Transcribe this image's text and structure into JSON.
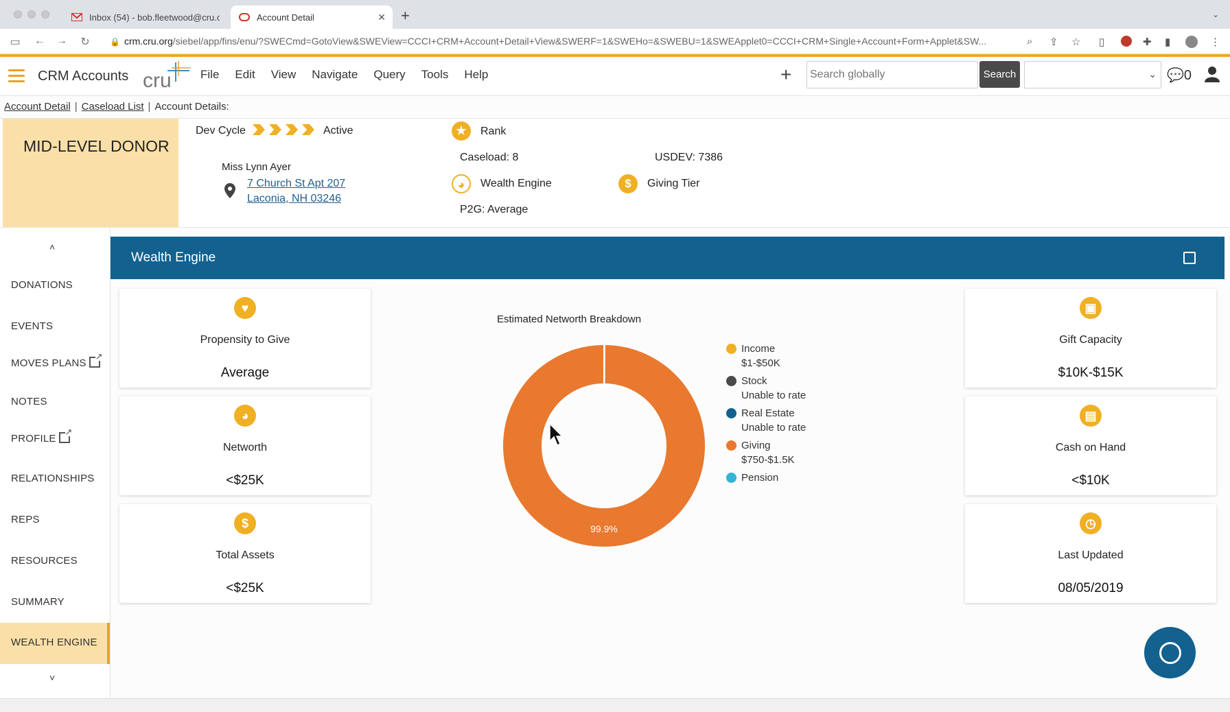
{
  "browser": {
    "tabs": [
      {
        "title": "Inbox (54) - bob.fleetwood@cru.o",
        "active": false
      },
      {
        "title": "Account Detail",
        "active": true
      }
    ],
    "url_host": "crm.cru.org",
    "url_path": "/siebel/app/fins/enu/?SWECmd=GotoView&SWEView=CCCI+CRM+Account+Detail+View&SWERF=1&SWEHo=&SWEBU=1&SWEApplet0=CCCI+CRM+Single+Account+Form+Applet&SW..."
  },
  "header": {
    "app_name": "CRM Accounts",
    "logo_text": "cru",
    "menu": [
      "File",
      "Edit",
      "View",
      "Navigate",
      "Query",
      "Tools",
      "Help"
    ],
    "search_placeholder": "Search globally",
    "search_button": "Search",
    "notification_count": "0"
  },
  "breadcrumb": {
    "items": [
      "Account Detail",
      "Caseload List"
    ],
    "current": "Account Details:"
  },
  "account": {
    "segment": "MID-LEVEL DONOR",
    "dev_cycle_label": "Dev Cycle",
    "dev_cycle_status": "Active",
    "name": "Miss Lynn Ayer",
    "address_line1": "7 Church St Apt 207",
    "address_line2": "Laconia, NH 03246",
    "rank_label": "Rank",
    "caseload": "Caseload:  8",
    "usdev": "USDEV:  7386",
    "wealth_engine_label": "Wealth Engine",
    "giving_tier_label": "Giving Tier",
    "p2g": "P2G:  Average"
  },
  "sidebar": {
    "items": [
      "DONATIONS",
      "EVENTS",
      "MOVES PLANS",
      "NOTES",
      "PROFILE",
      "RELATIONSHIPS",
      "REPS",
      "RESOURCES",
      "SUMMARY",
      "WEALTH ENGINE"
    ],
    "active": "WEALTH ENGINE"
  },
  "panel": {
    "title": "Wealth Engine",
    "left_cards": [
      {
        "label": "Propensity to Give",
        "value": "Average",
        "icon": "hand-heart-icon"
      },
      {
        "label": "Networth",
        "value": "<$25K",
        "icon": "piggy-bank-icon"
      },
      {
        "label": "Total Assets",
        "value": "<$25K",
        "icon": "dollar-icon"
      }
    ],
    "right_cards": [
      {
        "label": "Gift Capacity",
        "value": "$10K-$15K",
        "icon": "gift-icon"
      },
      {
        "label": "Cash on Hand",
        "value": "<$10K",
        "icon": "cash-icon"
      },
      {
        "label": "Last Updated",
        "value": "08/05/2019",
        "icon": "clock-icon"
      }
    ]
  },
  "chart_data": {
    "type": "pie",
    "title": "Estimated Networth Breakdown",
    "donut": true,
    "series": [
      {
        "name": "Income",
        "detail": "$1-$50K",
        "value": 0.1,
        "color": "#f0b024"
      },
      {
        "name": "Stock",
        "detail": "Unable to rate",
        "value": 0,
        "color": "#4a4a4a"
      },
      {
        "name": "Real Estate",
        "detail": "Unable to rate",
        "value": 0,
        "color": "#13618f"
      },
      {
        "name": "Giving",
        "detail": "$750-$1.5K",
        "value": 99.9,
        "color": "#e8792f"
      },
      {
        "name": "Pension",
        "detail": "",
        "value": 0,
        "color": "#35b3d1"
      }
    ],
    "data_labels": [
      "99.9%"
    ],
    "legend": "right"
  }
}
